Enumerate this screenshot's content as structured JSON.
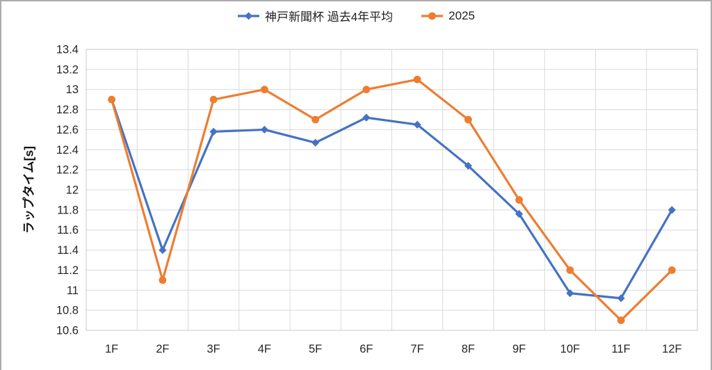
{
  "chart_data": {
    "type": "line",
    "categories": [
      "1F",
      "2F",
      "3F",
      "4F",
      "5F",
      "6F",
      "7F",
      "8F",
      "9F",
      "10F",
      "11F",
      "12F"
    ],
    "series": [
      {
        "name": "神戸新聞杯 過去4年平均",
        "color": "#4472C4",
        "marker": "diamond",
        "values": [
          12.9,
          11.4,
          12.58,
          12.6,
          12.47,
          12.72,
          12.65,
          12.24,
          11.76,
          10.97,
          10.92,
          11.8
        ]
      },
      {
        "name": "2025",
        "color": "#ED7D31",
        "marker": "circle",
        "values": [
          12.9,
          11.1,
          12.9,
          13.0,
          12.7,
          13.0,
          13.1,
          12.7,
          11.9,
          11.2,
          10.7,
          11.2
        ]
      }
    ],
    "title": "",
    "xlabel": "",
    "ylabel": "ラップタイム[s]",
    "ylim": [
      10.6,
      13.4
    ],
    "ytick_step": 0.2,
    "yticks": [
      "13.4",
      "13.2",
      "13",
      "12.8",
      "12.6",
      "12.4",
      "12.2",
      "12",
      "11.8",
      "11.6",
      "11.4",
      "11.2",
      "11",
      "10.8",
      "10.6"
    ],
    "grid": true,
    "legend_position": "top"
  },
  "colors": {
    "grid": "#d9d9d9",
    "plot_border": "#c9c9c9",
    "axis_text": "#262626",
    "frame_border": "#ababab"
  }
}
